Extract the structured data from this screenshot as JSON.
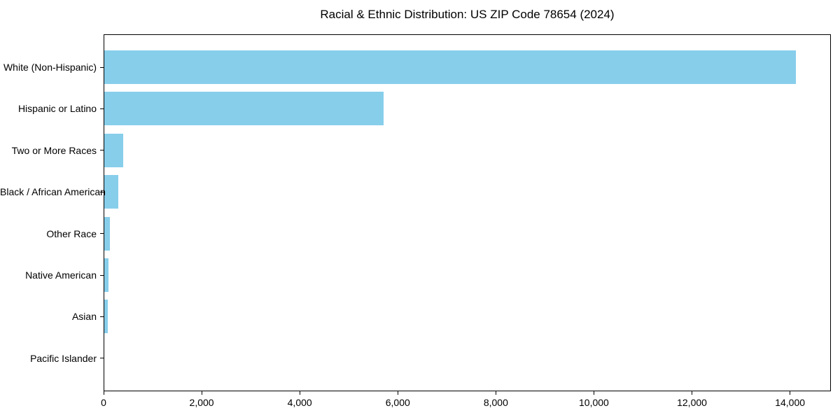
{
  "chart_data": {
    "type": "bar",
    "orientation": "horizontal",
    "title": "Racial & Ethnic Distribution: US ZIP Code 78654 (2024)",
    "categories": [
      "White (Non-Hispanic)",
      "Hispanic or Latino",
      "Two or More Races",
      "Black / African American",
      "Other Race",
      "Native American",
      "Asian",
      "Pacific Islander"
    ],
    "values": [
      14100,
      5700,
      380,
      290,
      115,
      85,
      75,
      0
    ],
    "bar_color": "#87ceeb",
    "xlim": [
      0,
      14805
    ],
    "xticks": [
      0,
      2000,
      4000,
      6000,
      8000,
      10000,
      12000,
      14000
    ],
    "xtick_labels": [
      "0",
      "2,000",
      "4,000",
      "6,000",
      "8,000",
      "10,000",
      "12,000",
      "14,000"
    ],
    "xlabel": "",
    "ylabel": "",
    "grid": false,
    "legend": "none",
    "sort": "descending_top_to_bottom",
    "frame": "all-four-spines",
    "spine_color": "#000000",
    "background_color": "#ffffff"
  }
}
